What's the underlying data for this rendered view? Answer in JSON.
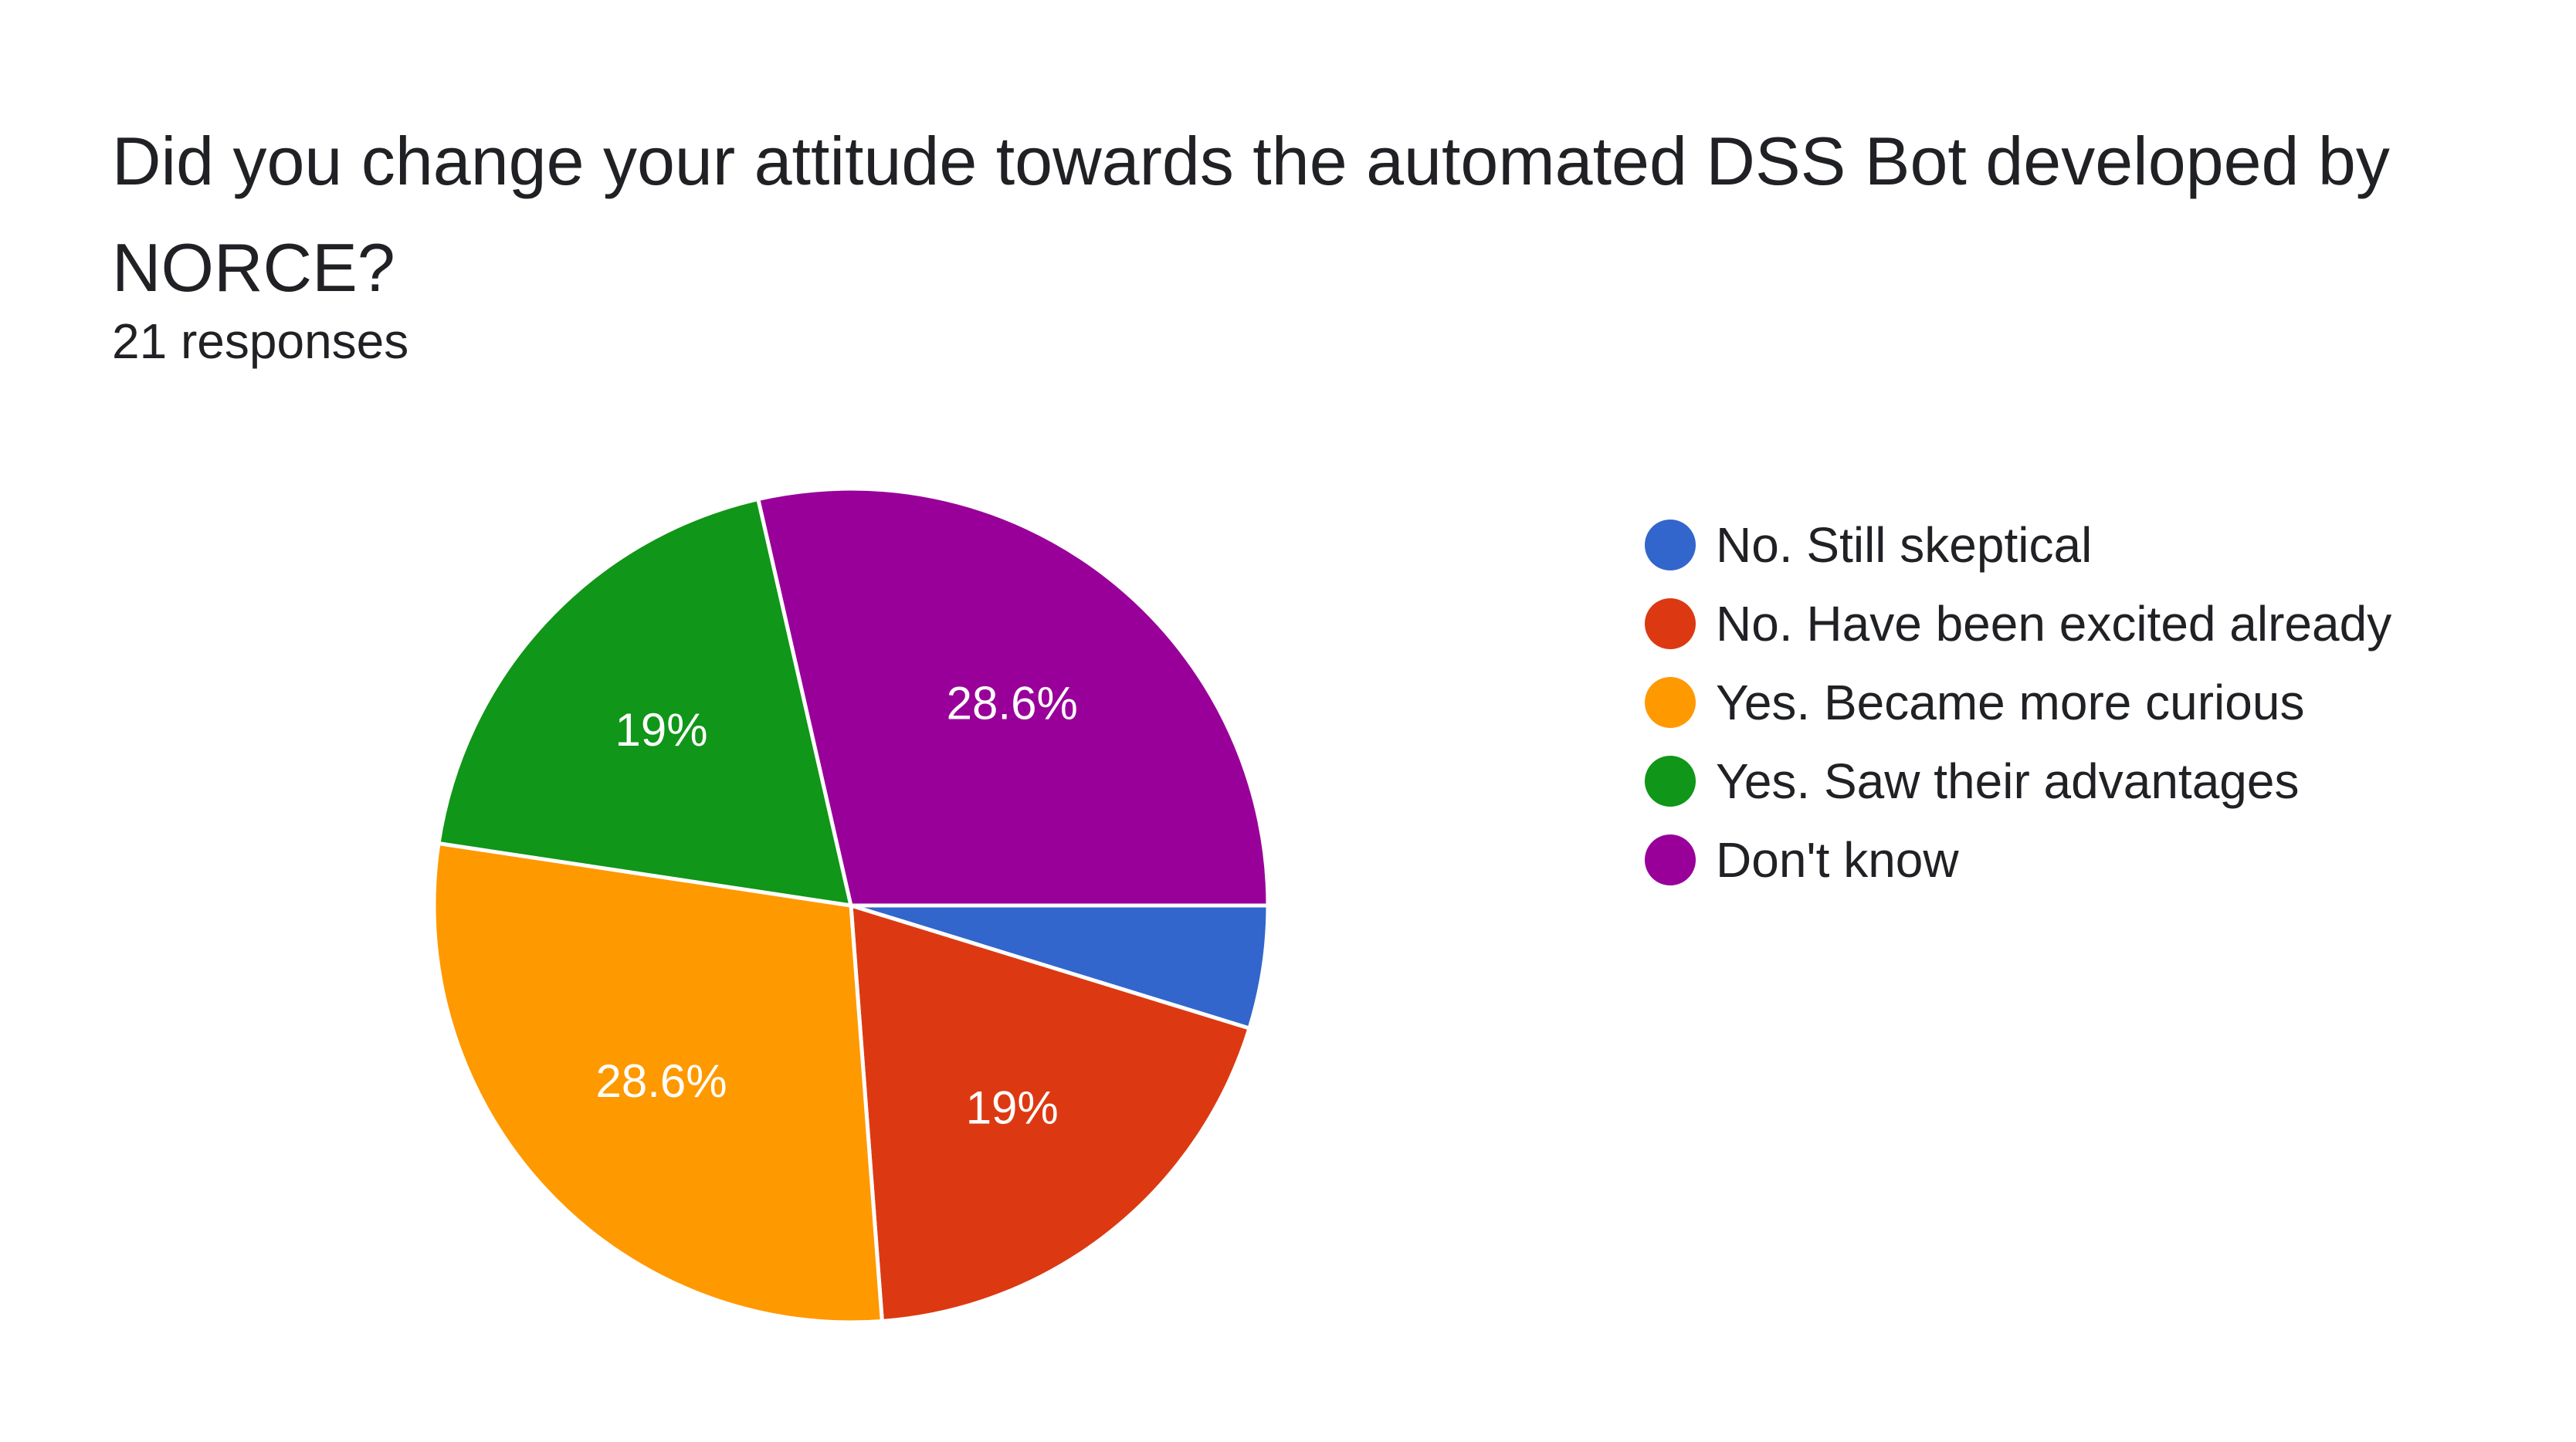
{
  "header": {
    "title": "Did you change your attitude towards the automated DSS Bot developed by NORCE?",
    "responses": "21 responses"
  },
  "chart_data": {
    "type": "pie",
    "title": "Did you change your attitude towards the automated DSS Bot developed by NORCE?",
    "total_responses": 21,
    "categories": [
      "No. Still skeptical",
      "No. Have been excited already",
      "Yes. Became more curious",
      "Yes. Saw their advantages",
      "Don't know"
    ],
    "values": [
      1,
      4,
      6,
      4,
      6
    ],
    "percent_labels": [
      "",
      "19%",
      "28.6%",
      "19%",
      "28.6%"
    ],
    "colors": [
      "#3366cc",
      "#dc3912",
      "#ff9900",
      "#109618",
      "#990099"
    ],
    "legend_position": "right"
  }
}
